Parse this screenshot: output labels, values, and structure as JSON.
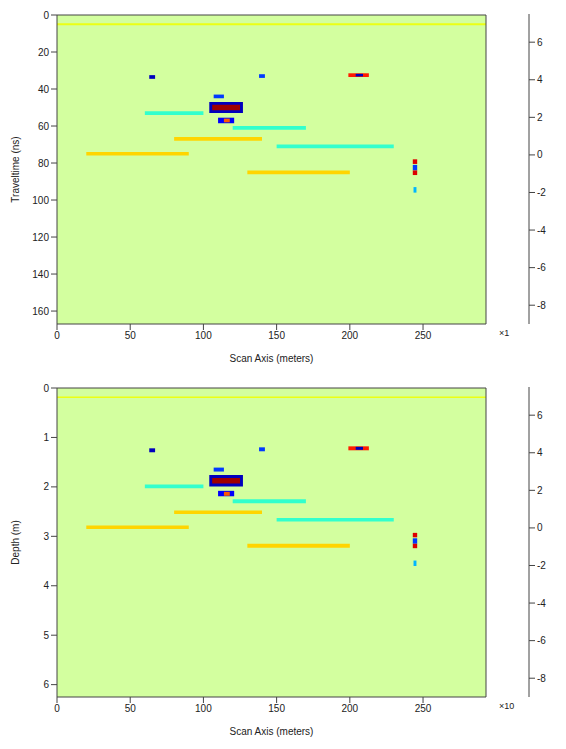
{
  "chart_data": [
    {
      "type": "heatmap",
      "xlabel": "Scan Axis (meters)",
      "ylabel": "Traveltime (ns)",
      "xlim": [
        0,
        293
      ],
      "xticks": [
        0,
        50,
        100,
        150,
        200,
        250
      ],
      "ylim": [
        0,
        167
      ],
      "yticks": [
        0,
        20,
        40,
        60,
        80,
        100,
        120,
        140,
        160
      ],
      "colorbar": {
        "clim": [
          -9,
          7.5
        ],
        "ticks": [
          -8,
          -6,
          -4,
          -2,
          0,
          2,
          4,
          6
        ],
        "multiplier": "×1"
      },
      "background_value": 0,
      "cells": [
        {
          "x0": 0,
          "x1": 293,
          "y0": 4.5,
          "y1": 5.5,
          "value": 1
        },
        {
          "x0": 60,
          "x1": 100,
          "y0": 52,
          "y1": 54,
          "value": -2
        },
        {
          "x0": 120,
          "x1": 170,
          "y0": 60,
          "y1": 62,
          "value": -2
        },
        {
          "x0": 80,
          "x1": 140,
          "y0": 66,
          "y1": 68,
          "value": 2
        },
        {
          "x0": 150,
          "x1": 230,
          "y0": 70,
          "y1": 72,
          "value": -2
        },
        {
          "x0": 20,
          "x1": 90,
          "y0": 74,
          "y1": 76,
          "value": 2
        },
        {
          "x0": 130,
          "x1": 200,
          "y0": 84,
          "y1": 86,
          "value": 2
        },
        {
          "x0": 63,
          "x1": 67,
          "y0": 32.5,
          "y1": 34.5,
          "value": -8
        },
        {
          "x0": 138,
          "x1": 142,
          "y0": 32,
          "y1": 34,
          "value": -6
        },
        {
          "x0": 199,
          "x1": 213,
          "y0": 31.5,
          "y1": 33.5,
          "value": 5
        },
        {
          "x0": 204,
          "x1": 209,
          "y0": 31.8,
          "y1": 33.2,
          "value": -8
        },
        {
          "x0": 107,
          "x1": 114,
          "y0": 43,
          "y1": 45,
          "value": -6
        },
        {
          "x0": 104,
          "x1": 127,
          "y0": 47,
          "y1": 53,
          "value": -8
        },
        {
          "x0": 106,
          "x1": 125,
          "y0": 48.5,
          "y1": 51.5,
          "value": 7
        },
        {
          "x0": 110,
          "x1": 121,
          "y0": 55.5,
          "y1": 58.5,
          "value": -7
        },
        {
          "x0": 114,
          "x1": 118,
          "y0": 56,
          "y1": 58,
          "value": 4
        },
        {
          "x0": 243,
          "x1": 246,
          "y0": 78,
          "y1": 80.5,
          "value": 6
        },
        {
          "x0": 243,
          "x1": 246,
          "y0": 81,
          "y1": 84,
          "value": -6
        },
        {
          "x0": 243,
          "x1": 246,
          "y0": 84,
          "y1": 86.5,
          "value": 6
        },
        {
          "x0": 243.5,
          "x1": 245.5,
          "y0": 93,
          "y1": 96,
          "value": -4
        }
      ]
    },
    {
      "type": "heatmap",
      "xlabel": "Scan Axis (meters)",
      "ylabel": "Depth (m)",
      "xlim": [
        0,
        293
      ],
      "xticks": [
        0,
        50,
        100,
        150,
        200,
        250
      ],
      "ylim": [
        0,
        6.25
      ],
      "yticks": [
        0,
        1,
        2,
        3,
        4,
        5,
        6
      ],
      "colorbar": {
        "clim": [
          -9,
          7.5
        ],
        "ticks": [
          -8,
          -6,
          -4,
          -2,
          0,
          2,
          4,
          6
        ],
        "multiplier": "×10"
      },
      "background_value": 0,
      "cells": [
        {
          "x0": 0,
          "x1": 293,
          "y0": 0.17,
          "y1": 0.2,
          "value": 1
        },
        {
          "x0": 60,
          "x1": 100,
          "y0": 1.95,
          "y1": 2.03,
          "value": -2
        },
        {
          "x0": 120,
          "x1": 170,
          "y0": 2.25,
          "y1": 2.33,
          "value": -2
        },
        {
          "x0": 80,
          "x1": 140,
          "y0": 2.48,
          "y1": 2.55,
          "value": 2
        },
        {
          "x0": 150,
          "x1": 230,
          "y0": 2.63,
          "y1": 2.7,
          "value": -2
        },
        {
          "x0": 20,
          "x1": 90,
          "y0": 2.78,
          "y1": 2.85,
          "value": 2
        },
        {
          "x0": 130,
          "x1": 200,
          "y0": 3.15,
          "y1": 3.23,
          "value": 2
        },
        {
          "x0": 63,
          "x1": 67,
          "y0": 1.22,
          "y1": 1.3,
          "value": -8
        },
        {
          "x0": 138,
          "x1": 142,
          "y0": 1.2,
          "y1": 1.28,
          "value": -6
        },
        {
          "x0": 199,
          "x1": 213,
          "y0": 1.18,
          "y1": 1.26,
          "value": 5
        },
        {
          "x0": 204,
          "x1": 209,
          "y0": 1.19,
          "y1": 1.25,
          "value": -8
        },
        {
          "x0": 107,
          "x1": 114,
          "y0": 1.61,
          "y1": 1.69,
          "value": -6
        },
        {
          "x0": 104,
          "x1": 127,
          "y0": 1.76,
          "y1": 1.99,
          "value": -8
        },
        {
          "x0": 106,
          "x1": 125,
          "y0": 1.82,
          "y1": 1.93,
          "value": 7
        },
        {
          "x0": 110,
          "x1": 121,
          "y0": 2.08,
          "y1": 2.19,
          "value": -7
        },
        {
          "x0": 114,
          "x1": 118,
          "y0": 2.1,
          "y1": 2.18,
          "value": 4
        },
        {
          "x0": 243,
          "x1": 246,
          "y0": 2.93,
          "y1": 3.02,
          "value": 6
        },
        {
          "x0": 243,
          "x1": 246,
          "y0": 3.04,
          "y1": 3.15,
          "value": -6
        },
        {
          "x0": 243,
          "x1": 246,
          "y0": 3.15,
          "y1": 3.24,
          "value": 6
        },
        {
          "x0": 243.5,
          "x1": 245.5,
          "y0": 3.49,
          "y1": 3.6,
          "value": -4
        }
      ]
    }
  ]
}
